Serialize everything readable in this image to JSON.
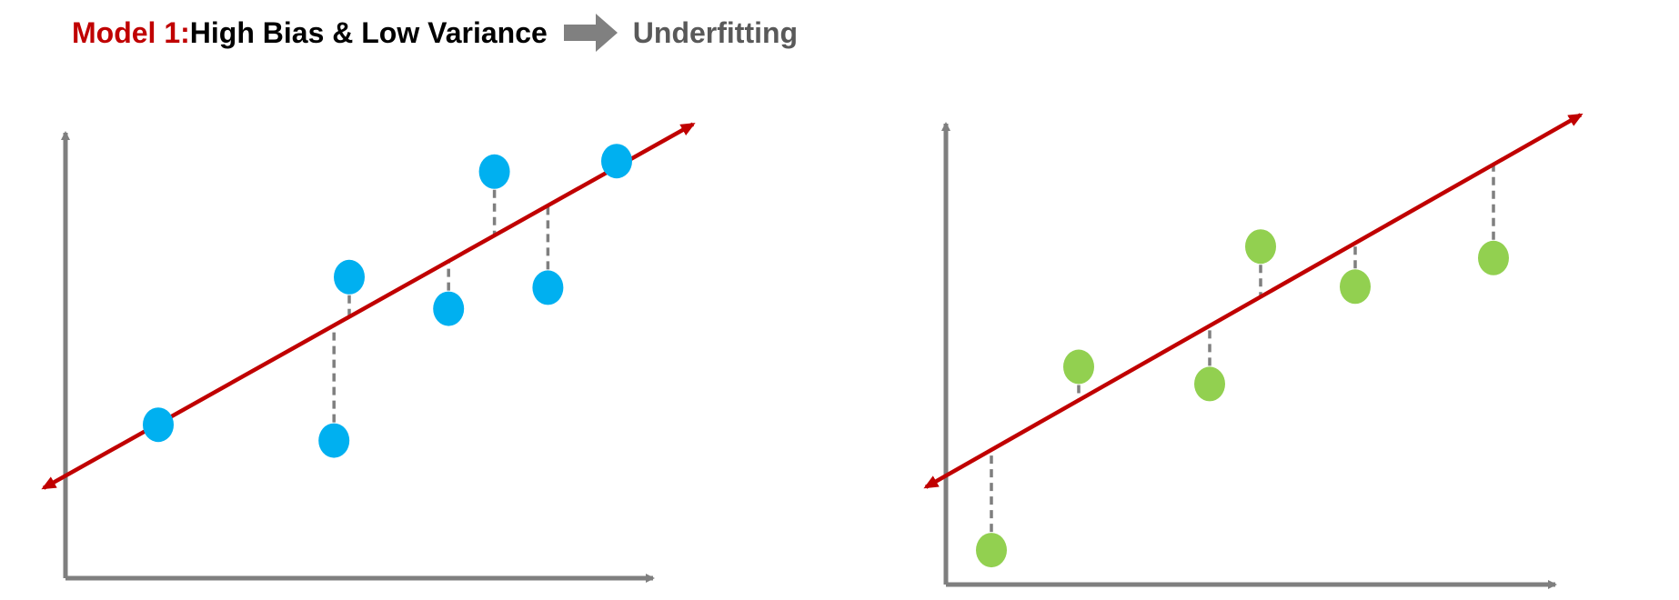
{
  "title": {
    "model_label": "Model 1",
    "colon": ":",
    "description": " High Bias & Low Variance",
    "result": "Underfitting"
  },
  "colors": {
    "model_label": "#c00000",
    "description": "#000000",
    "result": "#595959",
    "arrow": "#808080",
    "axis": "#7f7f7f",
    "fit_line": "#c00000",
    "residual": "#7f7f7f",
    "left_points": "#00b0f0",
    "right_points": "#92d050"
  },
  "diagrams": [
    {
      "name": "training-set",
      "point_color": "#00b0f0",
      "points": [
        {
          "x": 1.0,
          "y": 1.6
        },
        {
          "x": 3.3,
          "y": 1.3
        },
        {
          "x": 3.5,
          "y": 4.4
        },
        {
          "x": 4.8,
          "y": 3.8
        },
        {
          "x": 5.4,
          "y": 6.4
        },
        {
          "x": 6.1,
          "y": 4.2
        },
        {
          "x": 7.0,
          "y": 6.6
        }
      ],
      "fit": {
        "x_start": -0.5,
        "y_start": 0.4,
        "x_end": 8.0,
        "y_end": 7.3
      }
    },
    {
      "name": "test-set",
      "point_color": "#92d050",
      "points": [
        {
          "x": 0.4,
          "y": 0.3
        },
        {
          "x": 1.6,
          "y": 3.5
        },
        {
          "x": 3.4,
          "y": 3.2
        },
        {
          "x": 4.1,
          "y": 5.6
        },
        {
          "x": 5.4,
          "y": 4.9
        },
        {
          "x": 7.3,
          "y": 5.4
        }
      ],
      "fit": {
        "x_start": -0.5,
        "y_start": 1.4,
        "x_end": 8.5,
        "y_end": 7.9
      }
    }
  ]
}
